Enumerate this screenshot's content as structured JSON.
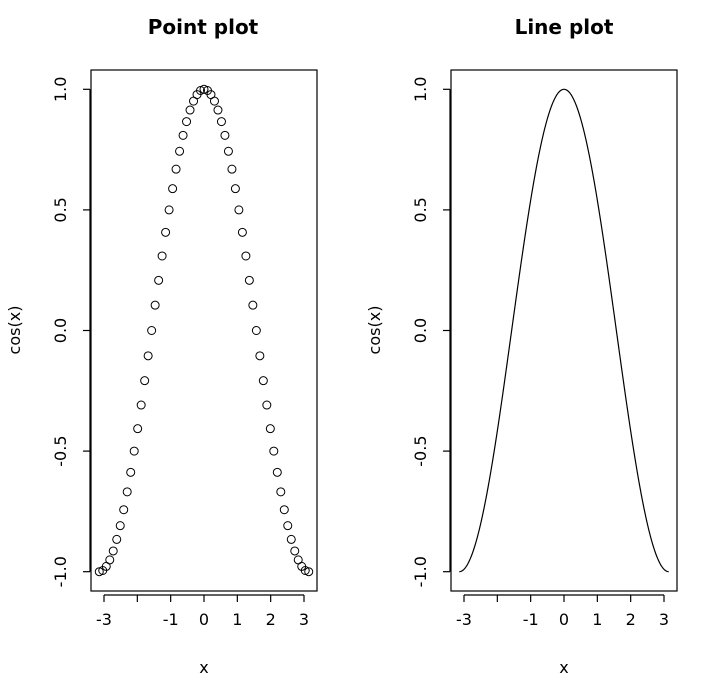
{
  "chart_data": [
    {
      "type": "scatter",
      "title": "Point plot",
      "xlabel": "x",
      "ylabel": "cos(x)",
      "xlim": [
        -3.39,
        3.39
      ],
      "ylim": [
        -1.08,
        1.08
      ],
      "x_ticks": [
        -3,
        -2,
        -1,
        0,
        1,
        2,
        3
      ],
      "x_tick_labels": [
        "-3",
        "",
        "-1",
        "0",
        "1",
        "2",
        "3"
      ],
      "y_ticks": [
        -1.0,
        -0.5,
        0.0,
        0.5,
        1.0
      ],
      "y_tick_labels": [
        "-1.0",
        "-0.5",
        "0.0",
        "0.5",
        "1.0"
      ],
      "grid": false,
      "series": [
        {
          "function": "cos(x)",
          "x_from": -3.14159,
          "x_to": 3.14159,
          "n_points": 61,
          "x": [
            -3.142,
            -3.037,
            -2.932,
            -2.827,
            -2.723,
            -2.618,
            -2.513,
            -2.409,
            -2.304,
            -2.199,
            -2.094,
            -1.99,
            -1.885,
            -1.78,
            -1.676,
            -1.571,
            -1.466,
            -1.361,
            -1.257,
            -1.152,
            -1.047,
            -0.942,
            -0.838,
            -0.733,
            -0.628,
            -0.524,
            -0.419,
            -0.314,
            -0.209,
            -0.105,
            0.0,
            0.105,
            0.209,
            0.314,
            0.419,
            0.524,
            0.628,
            0.733,
            0.838,
            0.942,
            1.047,
            1.152,
            1.257,
            1.361,
            1.466,
            1.571,
            1.676,
            1.78,
            1.885,
            1.99,
            2.094,
            2.199,
            2.304,
            2.409,
            2.513,
            2.618,
            2.723,
            2.827,
            2.932,
            3.037,
            3.142
          ],
          "y": [
            -1.0,
            -0.995,
            -0.978,
            -0.951,
            -0.914,
            -0.866,
            -0.809,
            -0.743,
            -0.669,
            -0.588,
            -0.5,
            -0.407,
            -0.309,
            -0.208,
            -0.105,
            0.0,
            0.105,
            0.208,
            0.309,
            0.407,
            0.5,
            0.588,
            0.669,
            0.743,
            0.809,
            0.866,
            0.914,
            0.951,
            0.978,
            0.995,
            1.0,
            0.995,
            0.978,
            0.951,
            0.914,
            0.866,
            0.809,
            0.743,
            0.669,
            0.588,
            0.5,
            0.407,
            0.309,
            0.208,
            0.105,
            0.0,
            -0.105,
            -0.208,
            -0.309,
            -0.407,
            -0.5,
            -0.588,
            -0.669,
            -0.743,
            -0.809,
            -0.866,
            -0.914,
            -0.951,
            -0.978,
            -0.995,
            -1.0
          ]
        }
      ]
    },
    {
      "type": "line",
      "title": "Line plot",
      "xlabel": "x",
      "ylabel": "cos(x)",
      "xlim": [
        -3.39,
        3.39
      ],
      "ylim": [
        -1.08,
        1.08
      ],
      "x_ticks": [
        -3,
        -2,
        -1,
        0,
        1,
        2,
        3
      ],
      "x_tick_labels": [
        "-3",
        "",
        "-1",
        "0",
        "1",
        "2",
        "3"
      ],
      "y_ticks": [
        -1.0,
        -0.5,
        0.0,
        0.5,
        1.0
      ],
      "y_tick_labels": [
        "-1.0",
        "-0.5",
        "0.0",
        "0.5",
        "1.0"
      ],
      "grid": false,
      "series": [
        {
          "function": "cos(x)",
          "x_from": -3.14159,
          "x_to": 3.14159,
          "n_points": 61,
          "x": [
            -3.142,
            -3.037,
            -2.932,
            -2.827,
            -2.723,
            -2.618,
            -2.513,
            -2.409,
            -2.304,
            -2.199,
            -2.094,
            -1.99,
            -1.885,
            -1.78,
            -1.676,
            -1.571,
            -1.466,
            -1.361,
            -1.257,
            -1.152,
            -1.047,
            -0.942,
            -0.838,
            -0.733,
            -0.628,
            -0.524,
            -0.419,
            -0.314,
            -0.209,
            -0.105,
            0.0,
            0.105,
            0.209,
            0.314,
            0.419,
            0.524,
            0.628,
            0.733,
            0.838,
            0.942,
            1.047,
            1.152,
            1.257,
            1.361,
            1.466,
            1.571,
            1.676,
            1.78,
            1.885,
            1.99,
            2.094,
            2.199,
            2.304,
            2.409,
            2.513,
            2.618,
            2.723,
            2.827,
            2.932,
            3.037,
            3.142
          ],
          "y": [
            -1.0,
            -0.995,
            -0.978,
            -0.951,
            -0.914,
            -0.866,
            -0.809,
            -0.743,
            -0.669,
            -0.588,
            -0.5,
            -0.407,
            -0.309,
            -0.208,
            -0.105,
            0.0,
            0.105,
            0.208,
            0.309,
            0.407,
            0.5,
            0.588,
            0.669,
            0.743,
            0.809,
            0.866,
            0.914,
            0.951,
            0.978,
            0.995,
            1.0,
            0.995,
            0.978,
            0.951,
            0.914,
            0.866,
            0.809,
            0.743,
            0.669,
            0.588,
            0.5,
            0.407,
            0.309,
            0.208,
            0.105,
            0.0,
            -0.105,
            -0.208,
            -0.309,
            -0.407,
            -0.5,
            -0.588,
            -0.669,
            -0.743,
            -0.809,
            -0.866,
            -0.914,
            -0.951,
            -0.978,
            -0.995,
            -1.0
          ]
        }
      ]
    }
  ]
}
